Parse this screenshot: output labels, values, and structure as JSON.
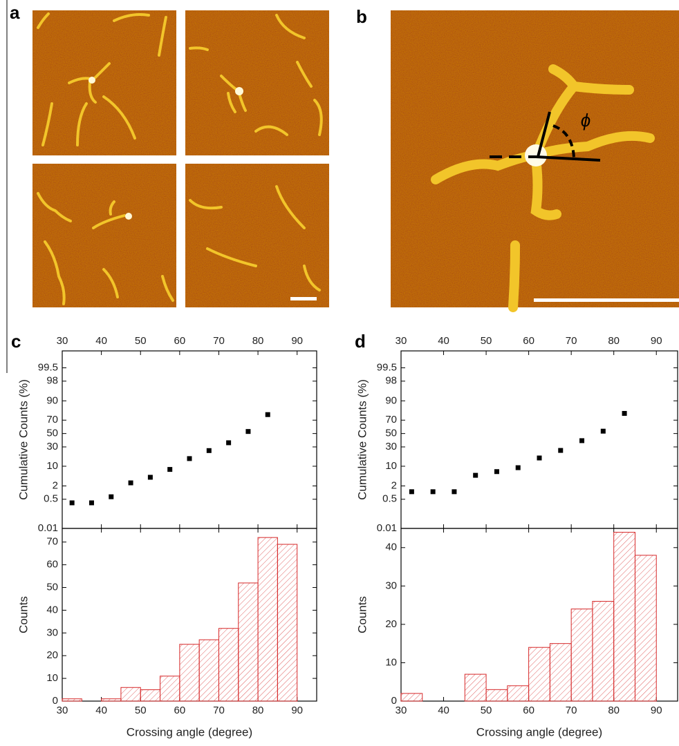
{
  "panel_labels": [
    "a",
    "b",
    "c",
    "d"
  ],
  "annotation": "ϕ",
  "chart_data": [
    {
      "type": "scatter",
      "yscale": "probability",
      "ylabel": "Cumulative Counts (%)",
      "color": "#000000",
      "x": [
        32.5,
        37.5,
        42.5,
        47.5,
        52.5,
        57.5,
        62.5,
        67.5,
        72.5,
        77.5,
        82.5
      ],
      "values": [
        0.33,
        0.33,
        0.66,
        2.66,
        4.32,
        7.97,
        16.3,
        25.2,
        35.9,
        53.2,
        77.1
      ],
      "xlim": [
        30,
        95
      ],
      "xticks": [
        30,
        40,
        50,
        60,
        70,
        80,
        90
      ],
      "ylim": [
        0.01,
        99.94
      ],
      "yticks": [
        0.01,
        0.5,
        2,
        10,
        30,
        50,
        70,
        90,
        98,
        99.5
      ]
    },
    {
      "type": "histogram",
      "xlabel": "Crossing angle (degree)",
      "ylabel": "Counts",
      "color": "#d62728",
      "bins": [
        30,
        35,
        40,
        45,
        50,
        55,
        60,
        65,
        70,
        75,
        80,
        85,
        90
      ],
      "values": [
        1,
        0,
        1,
        6,
        5,
        11,
        25,
        27,
        32,
        52,
        72,
        69
      ],
      "xlim": [
        30,
        95
      ],
      "xticks": [
        30,
        40,
        50,
        60,
        70,
        80,
        90
      ],
      "ylim": [
        0,
        76
      ],
      "yticks": [
        0,
        10,
        20,
        30,
        40,
        50,
        60,
        70
      ]
    },
    {
      "type": "scatter",
      "yscale": "probability",
      "ylabel": "Cumulative Counts (%)",
      "color": "#000000",
      "x": [
        32.5,
        37.5,
        42.5,
        47.5,
        52.5,
        57.5,
        62.5,
        67.5,
        72.5,
        77.5,
        82.5
      ],
      "values": [
        1.13,
        1.13,
        1.13,
        5.08,
        6.78,
        9.04,
        16.9,
        25.4,
        39.0,
        53.7,
        78.5
      ],
      "xlim": [
        30,
        95
      ],
      "xticks": [
        30,
        40,
        50,
        60,
        70,
        80,
        90
      ],
      "ylim": [
        0.01,
        99.94
      ],
      "yticks": [
        0.01,
        0.5,
        2,
        10,
        30,
        50,
        70,
        90,
        98,
        99.5
      ]
    },
    {
      "type": "histogram",
      "xlabel": "Crossing angle (degree)",
      "ylabel": "Counts",
      "color": "#d62728",
      "bins": [
        30,
        35,
        40,
        45,
        50,
        55,
        60,
        65,
        70,
        75,
        80,
        85,
        90
      ],
      "values": [
        2,
        0,
        0,
        7,
        3,
        4,
        14,
        15,
        24,
        26,
        44,
        38
      ],
      "xlim": [
        30,
        95
      ],
      "xticks": [
        30,
        40,
        50,
        60,
        70,
        80,
        90
      ],
      "ylim": [
        0,
        45
      ],
      "yticks": [
        0,
        10,
        20,
        30,
        40
      ]
    }
  ]
}
